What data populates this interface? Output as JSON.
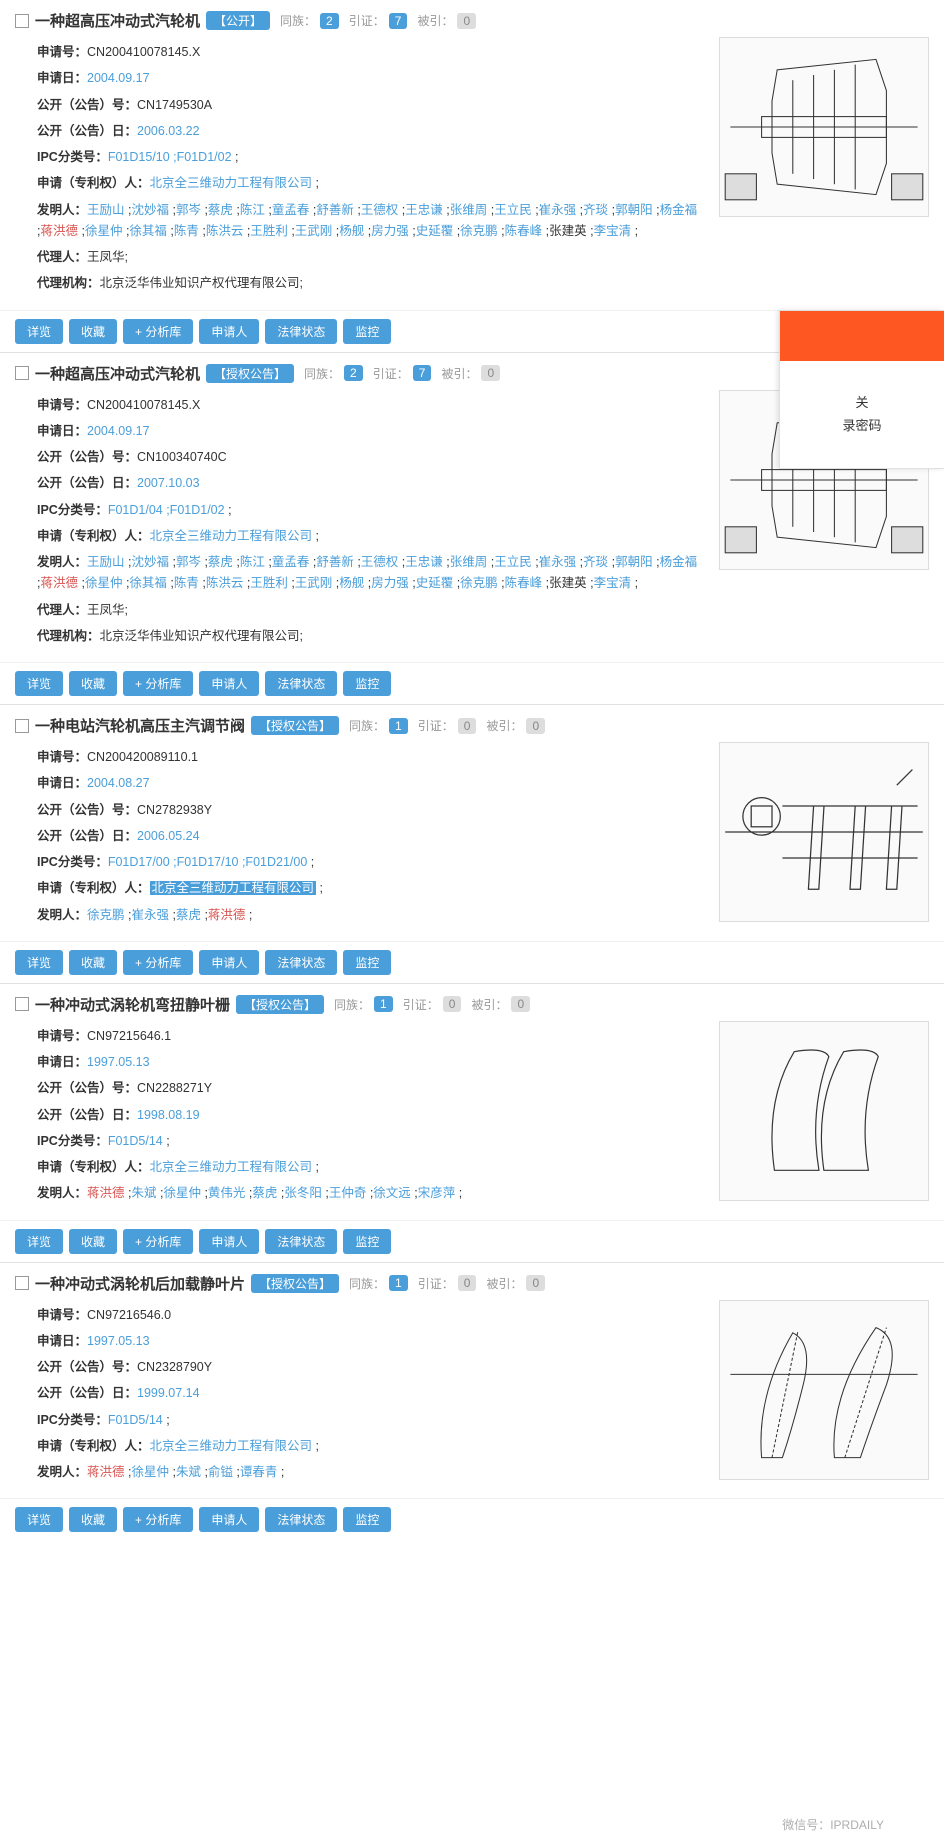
{
  "actions": {
    "detail": "详览",
    "favorite": "收藏",
    "analyze": "+ 分析库",
    "applicant": "申请人",
    "legal": "法律状态",
    "monitor": "监控"
  },
  "labels": {
    "app_no": "申请号：",
    "app_date": "申请日：",
    "pub_no": "公开（公告）号：",
    "pub_date": "公开（公告）日：",
    "ipc": "IPC分类号：",
    "applicant": "申请（专利权）人：",
    "inventors": "发明人：",
    "agent": "代理人：",
    "agency": "代理机构：",
    "family": "同族：",
    "cite": "引证：",
    "cited": "被引："
  },
  "side": {
    "line1": "关",
    "line2": "录密码"
  },
  "watermark": "微信号：IPRDAILY",
  "results": [
    {
      "title": "一种超高压冲动式汽轮机",
      "status": "【公开】",
      "family": "2",
      "cite": "7",
      "cited": "0",
      "app_no": "CN200410078145.X",
      "app_date": "2004.09.17",
      "pub_no": "CN1749530A",
      "pub_date": "2006.03.22",
      "ipc": "F01D15/10 ;F01D1/02",
      "applicant": "北京全三维动力工程有限公司",
      "inventors_html": "<span class='name-blue'>王励山</span> ;<span class='name-blue'>沈妙福</span> ;<span class='name-blue'>郭岑</span> ;<span class='name-blue'>蔡虎</span> ;<span class='name-blue'>陈江</span> ;<span class='name-blue'>童孟春</span> ;<span class='name-blue'>舒善新</span> ;<span class='name-blue'>王德权</span> ;<span class='name-blue'>王忠谦</span> ;<span class='name-blue'>张维周</span> ;<span class='name-blue'>王立民</span> ;<span class='name-blue'>崔永强</span> ;<span class='name-blue'>齐琰</span> ;<span class='name-blue'>郭朝阳</span> ;<span class='name-blue'>杨金福</span> ;<span class='name-red'>蒋洪德</span> ;<span class='name-blue'>徐星仲</span> ;<span class='name-blue'>徐其福</span> ;<span class='name-blue'>陈青</span> ;<span class='name-blue'>陈洪云</span> ;<span class='name-blue'>王胜利</span> ;<span class='name-blue'>王武刚</span> ;<span class='name-blue'>杨舰</span> ;<span class='name-blue'>房力强</span> ;<span class='name-blue'>史延覆</span> ;<span class='name-blue'>徐克鹏</span> ;<span class='name-blue'>陈春峰</span> ;<span class='field-text'>张建英</span> ;<span class='name-blue'>李宝清</span> ;",
      "agent": "王凤华;",
      "agency": "北京泛华伟业知识产权代理有限公司;",
      "thumb_type": "turbine"
    },
    {
      "title": "一种超高压冲动式汽轮机",
      "status": "【授权公告】",
      "family": "2",
      "cite": "7",
      "cited": "0",
      "app_no": "CN200410078145.X",
      "app_date": "2004.09.17",
      "pub_no": "CN100340740C",
      "pub_date": "2007.10.03",
      "ipc": "F01D1/04 ;F01D1/02",
      "applicant": "北京全三维动力工程有限公司",
      "inventors_html": "<span class='name-blue'>王励山</span> ;<span class='name-blue'>沈妙福</span> ;<span class='name-blue'>郭岑</span> ;<span class='name-blue'>蔡虎</span> ;<span class='name-blue'>陈江</span> ;<span class='name-blue'>童孟春</span> ;<span class='name-blue'>舒善新</span> ;<span class='name-blue'>王德权</span> ;<span class='name-blue'>王忠谦</span> ;<span class='name-blue'>张维周</span> ;<span class='name-blue'>王立民</span> ;<span class='name-blue'>崔永强</span> ;<span class='name-blue'>齐琰</span> ;<span class='name-blue'>郭朝阳</span> ;<span class='name-blue'>杨金福</span> ;<span class='name-red'>蒋洪德</span> ;<span class='name-blue'>徐星仲</span> ;<span class='name-blue'>徐其福</span> ;<span class='name-blue'>陈青</span> ;<span class='name-blue'>陈洪云</span> ;<span class='name-blue'>王胜利</span> ;<span class='name-blue'>王武刚</span> ;<span class='name-blue'>杨舰</span> ;<span class='name-blue'>房力强</span> ;<span class='name-blue'>史延覆</span> ;<span class='name-blue'>徐克鹏</span> ;<span class='name-blue'>陈春峰</span> ;<span class='field-text'>张建英</span> ;<span class='name-blue'>李宝清</span> ;",
      "agent": "王凤华;",
      "agency": "北京泛华伟业知识产权代理有限公司;",
      "thumb_type": "turbine"
    },
    {
      "title": "一种电站汽轮机高压主汽调节阀",
      "status": "【授权公告】",
      "family": "1",
      "cite": "0",
      "cited": "0",
      "app_no": "CN200420089110.1",
      "app_date": "2004.08.27",
      "pub_no": "CN2782938Y",
      "pub_date": "2006.05.24",
      "ipc": "F01D17/00 ;F01D17/10 ;F01D21/00",
      "applicant_highlighted": true,
      "applicant": "北京全三维动力工程有限公司",
      "inventors_html": "<span class='name-blue'>徐克鹏</span> ;<span class='name-blue'>崔永强</span> ;<span class='name-blue'>蔡虎</span> ;<span class='name-red'>蒋洪德</span> ;",
      "thumb_type": "valve"
    },
    {
      "title": "一种冲动式涡轮机弯扭静叶栅",
      "status": "【授权公告】",
      "family": "1",
      "cite": "0",
      "cited": "0",
      "app_no": "CN97215646.1",
      "app_date": "1997.05.13",
      "pub_no": "CN2288271Y",
      "pub_date": "1998.08.19",
      "ipc": "F01D5/14",
      "applicant": "北京全三维动力工程有限公司",
      "inventors_html": "<span class='name-red'>蒋洪德</span> ;<span class='name-blue'>朱斌</span> ;<span class='name-blue'>徐星仲</span> ;<span class='name-blue'>黄伟光</span> ;<span class='name-blue'>蔡虎</span> ;<span class='name-blue'>张冬阳</span> ;<span class='name-blue'>王仲奇</span> ;<span class='name-blue'>徐文远</span> ;<span class='name-blue'>宋彦萍</span> ;",
      "thumb_type": "blade"
    },
    {
      "title": "一种冲动式涡轮机后加载静叶片",
      "status": "【授权公告】",
      "family": "1",
      "cite": "0",
      "cited": "0",
      "app_no": "CN97216546.0",
      "app_date": "1997.05.13",
      "pub_no": "CN2328790Y",
      "pub_date": "1999.07.14",
      "ipc": "F01D5/14",
      "applicant": "北京全三维动力工程有限公司",
      "inventors_html": "<span class='name-red'>蒋洪德</span> ;<span class='name-blue'>徐星仲</span> ;<span class='name-blue'>朱斌</span> ;<span class='name-blue'>俞镒</span> ;<span class='name-blue'>谭春青</span> ;",
      "thumb_type": "airfoil"
    }
  ]
}
